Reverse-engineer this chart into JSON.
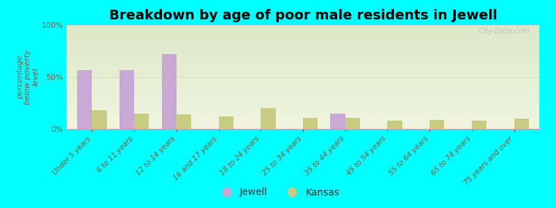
{
  "title": "Breakdown by age of poor male residents in Jewell",
  "ylabel": "percentage\nbelow poverty\nlevel",
  "categories": [
    "Under 5 years",
    "6 to 11 years",
    "12 to 14 years",
    "16 and 17 years",
    "18 to 24 years",
    "25 to 34 years",
    "35 to 44 years",
    "45 to 54 years",
    "55 to 64 years",
    "65 to 74 years",
    "75 years and over"
  ],
  "jewell_values": [
    57,
    57,
    72,
    0,
    0,
    0,
    15,
    0,
    0,
    0,
    0
  ],
  "kansas_values": [
    18,
    15,
    14,
    12,
    20,
    11,
    11,
    8,
    9,
    8,
    10
  ],
  "jewell_color": "#c9a8d4",
  "kansas_color": "#c8cc82",
  "background_outer": "#00ffff",
  "background_inner_top": "#dce8c8",
  "background_inner_bottom": "#f0f5e0",
  "title_fontsize": 14,
  "ylabel_fontsize": 8,
  "tick_label_fontsize": 7.5,
  "legend_fontsize": 10,
  "ylim": [
    0,
    100
  ],
  "yticks": [
    0,
    50,
    100
  ],
  "ytick_labels": [
    "0%",
    "50%",
    "100%"
  ],
  "watermark": "City-Data.com",
  "bar_width": 0.35,
  "axis_label_color": "#7a5a3a",
  "grid_color": "#d0d8c0",
  "spine_color": "#aaaaaa"
}
